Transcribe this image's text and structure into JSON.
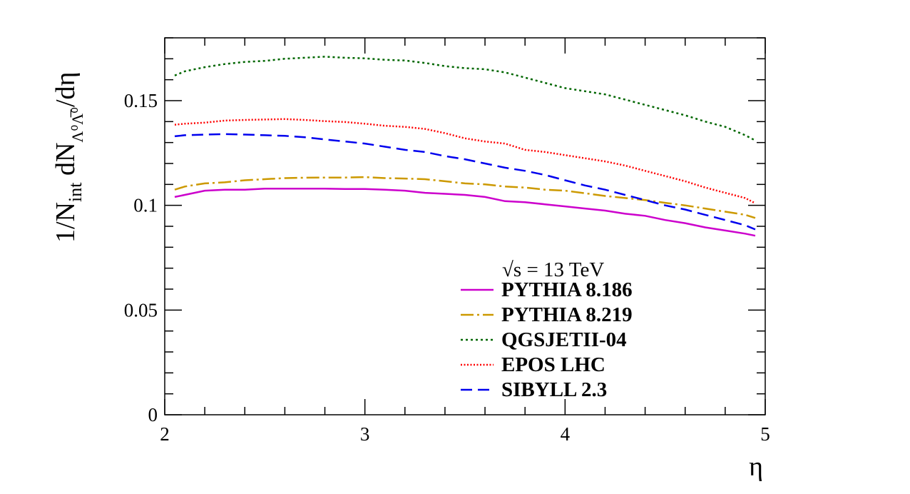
{
  "chart_data": {
    "type": "line",
    "xlabel": "η",
    "ylabel": {
      "prefix": "1/N",
      "prefix_sub": "int",
      "middle": " dN",
      "middle_sub": "Λ⁰Λ̅⁰",
      "suffix": "/dη"
    },
    "xlim": [
      2,
      5
    ],
    "ylim": [
      0,
      0.18
    ],
    "x_ticks": [
      "2",
      "3",
      "4",
      "5"
    ],
    "y_ticks": [
      "0",
      "0.05",
      "0.1",
      "0.15"
    ],
    "grid": false,
    "legend_header": "√s = 13 TeV",
    "legend_position": "bottom-right",
    "series": [
      {
        "name": "PYTHIA 8.186",
        "color": "#cc00cc",
        "dash": "solid",
        "x": [
          2.05,
          2.1,
          2.2,
          2.3,
          2.4,
          2.5,
          2.6,
          2.7,
          2.8,
          2.9,
          3.0,
          3.1,
          3.2,
          3.3,
          3.4,
          3.5,
          3.6,
          3.7,
          3.8,
          3.9,
          4.0,
          4.1,
          4.2,
          4.3,
          4.4,
          4.5,
          4.6,
          4.7,
          4.8,
          4.9,
          4.95
        ],
        "values": [
          0.104,
          0.105,
          0.107,
          0.1075,
          0.1075,
          0.108,
          0.108,
          0.108,
          0.108,
          0.1078,
          0.1078,
          0.1075,
          0.107,
          0.106,
          0.1055,
          0.105,
          0.104,
          0.102,
          0.1015,
          0.1005,
          0.0995,
          0.0985,
          0.0975,
          0.096,
          0.095,
          0.093,
          0.0915,
          0.0895,
          0.088,
          0.0865,
          0.0855
        ]
      },
      {
        "name": "PYTHIA 8.219",
        "color": "#cc9900",
        "dash": "long-dash-dot",
        "x": [
          2.05,
          2.1,
          2.2,
          2.3,
          2.4,
          2.5,
          2.6,
          2.7,
          2.8,
          2.9,
          3.0,
          3.1,
          3.2,
          3.3,
          3.4,
          3.5,
          3.6,
          3.7,
          3.8,
          3.9,
          4.0,
          4.1,
          4.2,
          4.3,
          4.4,
          4.5,
          4.6,
          4.7,
          4.8,
          4.9,
          4.95
        ],
        "values": [
          0.1075,
          0.109,
          0.1105,
          0.111,
          0.112,
          0.1125,
          0.113,
          0.1132,
          0.1133,
          0.1133,
          0.1135,
          0.113,
          0.1128,
          0.1125,
          0.1115,
          0.1105,
          0.11,
          0.109,
          0.1085,
          0.1075,
          0.107,
          0.1058,
          0.1045,
          0.1035,
          0.1025,
          0.1012,
          0.1,
          0.0985,
          0.097,
          0.0955,
          0.094
        ]
      },
      {
        "name": "QGSJETII-04",
        "color": "#006600",
        "dash": "dotted",
        "x": [
          2.05,
          2.1,
          2.2,
          2.3,
          2.4,
          2.5,
          2.6,
          2.7,
          2.8,
          2.9,
          3.0,
          3.1,
          3.2,
          3.3,
          3.4,
          3.5,
          3.6,
          3.7,
          3.8,
          3.9,
          4.0,
          4.1,
          4.2,
          4.3,
          4.4,
          4.5,
          4.6,
          4.7,
          4.8,
          4.9,
          4.95
        ],
        "values": [
          0.162,
          0.164,
          0.166,
          0.1675,
          0.1685,
          0.169,
          0.17,
          0.1705,
          0.171,
          0.1705,
          0.1702,
          0.1695,
          0.1692,
          0.168,
          0.1665,
          0.1655,
          0.165,
          0.1635,
          0.161,
          0.1585,
          0.156,
          0.1545,
          0.153,
          0.1505,
          0.148,
          0.1455,
          0.143,
          0.14,
          0.1375,
          0.1335,
          0.131
        ]
      },
      {
        "name": "EPOS LHC",
        "color": "#ff0000",
        "dash": "fine-dotted",
        "x": [
          2.05,
          2.1,
          2.2,
          2.3,
          2.4,
          2.5,
          2.6,
          2.7,
          2.8,
          2.9,
          3.0,
          3.1,
          3.2,
          3.3,
          3.4,
          3.5,
          3.6,
          3.7,
          3.8,
          3.9,
          4.0,
          4.1,
          4.2,
          4.3,
          4.4,
          4.5,
          4.6,
          4.7,
          4.8,
          4.9,
          4.95
        ],
        "values": [
          0.1385,
          0.139,
          0.1395,
          0.1405,
          0.1408,
          0.141,
          0.1412,
          0.1408,
          0.1402,
          0.1398,
          0.139,
          0.138,
          0.1375,
          0.1365,
          0.1345,
          0.132,
          0.1305,
          0.1295,
          0.1265,
          0.1255,
          0.124,
          0.1225,
          0.121,
          0.119,
          0.1165,
          0.114,
          0.1115,
          0.1085,
          0.106,
          0.1035,
          0.101
        ]
      },
      {
        "name": "SIBYLL 2.3",
        "color": "#0000ee",
        "dash": "long-dash",
        "x": [
          2.05,
          2.1,
          2.2,
          2.3,
          2.4,
          2.5,
          2.6,
          2.7,
          2.8,
          2.9,
          3.0,
          3.1,
          3.2,
          3.3,
          3.4,
          3.5,
          3.6,
          3.7,
          3.8,
          3.9,
          4.0,
          4.1,
          4.2,
          4.3,
          4.4,
          4.5,
          4.6,
          4.7,
          4.8,
          4.9,
          4.95
        ],
        "values": [
          0.133,
          0.1335,
          0.1338,
          0.134,
          0.1338,
          0.1335,
          0.1332,
          0.1325,
          0.1315,
          0.1305,
          0.1295,
          0.128,
          0.1265,
          0.1255,
          0.1235,
          0.122,
          0.12,
          0.118,
          0.1165,
          0.1145,
          0.112,
          0.1095,
          0.1075,
          0.105,
          0.1025,
          0.1,
          0.098,
          0.0955,
          0.093,
          0.0905,
          0.0885
        ]
      }
    ]
  }
}
